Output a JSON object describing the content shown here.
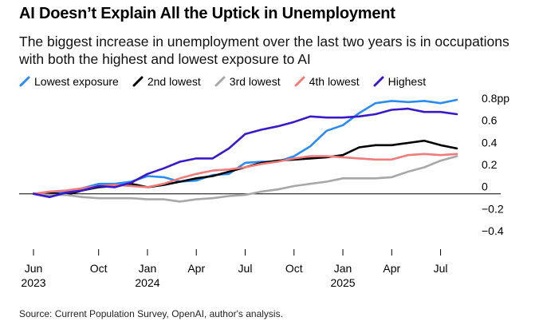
{
  "chart_data": {
    "type": "line",
    "title": "AI Doesn’t Explain All the Uptick in Unemployment",
    "subtitle": "The biggest increase in unemployment over the last two years is in occupations with both the highest and lowest exposure to AI",
    "ylabel": "",
    "xlabel": "",
    "ylim": [
      -0.45,
      0.85
    ],
    "yticks": [
      {
        "value": 0.8,
        "label": "0.8pp"
      },
      {
        "value": 0.6,
        "label": "0.6"
      },
      {
        "value": 0.4,
        "label": "0.4"
      },
      {
        "value": 0.2,
        "label": "0.2"
      },
      {
        "value": 0,
        "label": "0"
      },
      {
        "value": -0.2,
        "label": "−0.2"
      },
      {
        "value": -0.4,
        "label": "−0.4"
      }
    ],
    "x": [
      "2023-06",
      "2023-07",
      "2023-08",
      "2023-09",
      "2023-10",
      "2023-11",
      "2023-12",
      "2024-01",
      "2024-02",
      "2024-03",
      "2024-04",
      "2024-05",
      "2024-06",
      "2024-07",
      "2024-08",
      "2024-09",
      "2024-10",
      "2024-11",
      "2024-12",
      "2025-01",
      "2025-02",
      "2025-03",
      "2025-04",
      "2025-05",
      "2025-06",
      "2025-07",
      "2025-08"
    ],
    "xticks": [
      {
        "x": "2023-06",
        "label": "Jun",
        "year": "2023"
      },
      {
        "x": "2023-10",
        "label": "Oct",
        "year": ""
      },
      {
        "x": "2024-01",
        "label": "Jan",
        "year": "2024"
      },
      {
        "x": "2024-04",
        "label": "Apr",
        "year": ""
      },
      {
        "x": "2024-07",
        "label": "Jul",
        "year": ""
      },
      {
        "x": "2024-10",
        "label": "Oct",
        "year": ""
      },
      {
        "x": "2025-01",
        "label": "Jan",
        "year": "2025"
      },
      {
        "x": "2025-04",
        "label": "Apr",
        "year": ""
      },
      {
        "x": "2025-07",
        "label": "Jul",
        "year": ""
      }
    ],
    "legend_position": "top-left",
    "zero_line": true,
    "series": [
      {
        "name": "Lowest exposure",
        "color": "#2a8cf0",
        "values": [
          0,
          0.01,
          0.02,
          0.05,
          0.09,
          0.09,
          0.11,
          0.16,
          0.15,
          0.11,
          0.12,
          0.17,
          0.18,
          0.28,
          0.29,
          0.29,
          0.34,
          0.43,
          0.57,
          0.62,
          0.73,
          0.82,
          0.84,
          0.83,
          0.84,
          0.82,
          0.85
        ]
      },
      {
        "name": "2nd lowest",
        "color": "#000000",
        "values": [
          0,
          0.01,
          -0.01,
          0.03,
          0.06,
          0.07,
          0.09,
          0.06,
          0.08,
          0.11,
          0.14,
          0.16,
          0.2,
          0.24,
          0.28,
          0.3,
          0.31,
          0.32,
          0.33,
          0.35,
          0.42,
          0.44,
          0.44,
          0.46,
          0.48,
          0.44,
          0.41
        ]
      },
      {
        "name": "3rd lowest",
        "color": "#a8a8a8",
        "values": [
          0,
          -0.01,
          -0.01,
          -0.03,
          -0.04,
          -0.04,
          -0.04,
          -0.05,
          -0.05,
          -0.07,
          -0.05,
          -0.04,
          -0.02,
          -0.01,
          0.02,
          0.04,
          0.07,
          0.09,
          0.11,
          0.14,
          0.14,
          0.14,
          0.15,
          0.2,
          0.24,
          0.3,
          0.34
        ]
      },
      {
        "name": "4th lowest",
        "color": "#ef7b7b",
        "values": [
          0,
          0.02,
          0.03,
          0.05,
          0.07,
          0.08,
          0.07,
          0.06,
          0.09,
          0.14,
          0.18,
          0.21,
          0.22,
          0.24,
          0.27,
          0.29,
          0.32,
          0.34,
          0.34,
          0.33,
          0.32,
          0.31,
          0.31,
          0.35,
          0.36,
          0.35,
          0.36
        ]
      },
      {
        "name": "Highest",
        "color": "#3a19c9",
        "values": [
          0,
          -0.03,
          0.01,
          0.03,
          0.07,
          0.06,
          0.1,
          0.18,
          0.23,
          0.29,
          0.32,
          0.32,
          0.41,
          0.54,
          0.58,
          0.61,
          0.65,
          0.7,
          0.69,
          0.69,
          0.7,
          0.72,
          0.76,
          0.77,
          0.74,
          0.74,
          0.72
        ]
      }
    ]
  },
  "source": "Source: Current Population Survey, OpenAI, author's analysis."
}
